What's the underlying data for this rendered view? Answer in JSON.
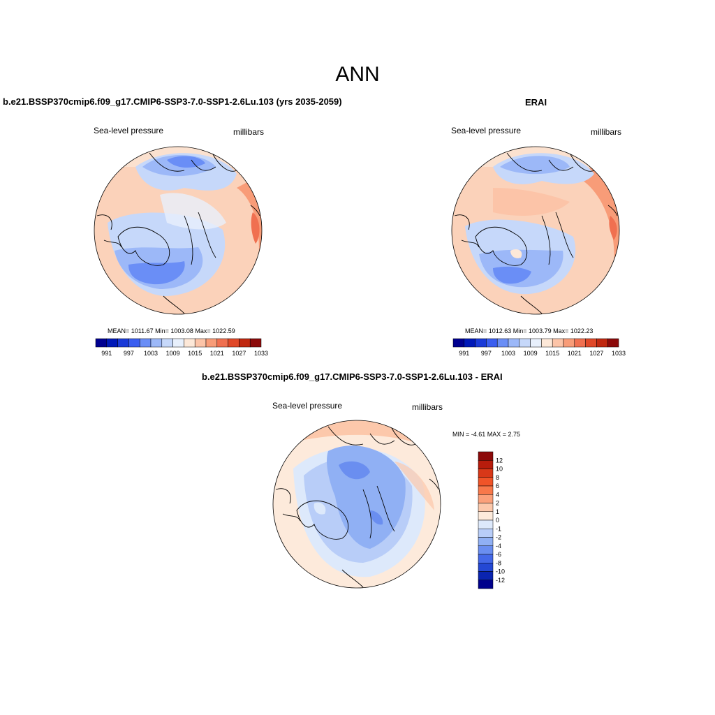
{
  "main_title": "ANN",
  "panels": [
    {
      "title": "b.e21.BSSP370cmip6.f09_g17.CMIP6-SSP3-7.0-SSP1-2.6Lu.103 (yrs 2035-2059)",
      "variable": "Sea-level pressure",
      "units": "millibars",
      "stats": "MEAN= 1011.67  Min= 1003.08  Max= 1022.59"
    },
    {
      "title": "ERAI",
      "variable": "Sea-level pressure",
      "units": "millibars",
      "stats": "MEAN= 1012.63  Min= 1003.79  Max= 1022.23"
    },
    {
      "title": "b.e21.BSSP370cmip6.f09_g17.CMIP6-SSP3-7.0-SSP1-2.6Lu.103 - ERAI",
      "variable": "Sea-level pressure",
      "units": "millibars",
      "stats": "MIN =  -4.61 MAX =   2.75"
    }
  ],
  "colorbar_abs": {
    "colors": [
      "#000090",
      "#0019b8",
      "#1a3ad8",
      "#3a5ef0",
      "#6a8ef6",
      "#9cb8f8",
      "#c6d8fa",
      "#e8f0fc",
      "#fde8d8",
      "#fcc4a8",
      "#f89c78",
      "#f07050",
      "#e04828",
      "#c02810",
      "#8c0a0a"
    ],
    "labels": [
      "991",
      "997",
      "1003",
      "1009",
      "1015",
      "1021",
      "1027",
      "1033"
    ]
  },
  "colorbar_diff": {
    "colors": [
      "#8c0a0a",
      "#b81c0c",
      "#d83818",
      "#f05428",
      "#f8784a",
      "#fba07a",
      "#fcc8ab",
      "#fdeadb",
      "#dde9fb",
      "#b8cdf8",
      "#90b0f4",
      "#6a8ef0",
      "#4468e8",
      "#2448d4",
      "#0a24b0",
      "#00008c"
    ],
    "labels": [
      "12",
      "10",
      "8",
      "6",
      "4",
      "2",
      "1",
      "0",
      "-1",
      "-2",
      "-4",
      "-6",
      "-8",
      "-10",
      "-12"
    ]
  },
  "chart_data": [
    {
      "type": "heatmap",
      "title": "b.e21.BSSP370cmip6.f09_g17.CMIP6-SSP3-7.0-SSP1-2.6Lu.103 (yrs 2035-2059)",
      "field": "Sea-level pressure",
      "units": "millibars",
      "projection": "north polar stereographic",
      "contour_levels": [
        991,
        994,
        997,
        1000,
        1003,
        1006,
        1009,
        1012,
        1015,
        1018,
        1021,
        1024,
        1027,
        1030,
        1033
      ],
      "mean": 1011.67,
      "min": 1003.08,
      "max": 1022.59
    },
    {
      "type": "heatmap",
      "title": "ERAI",
      "field": "Sea-level pressure",
      "units": "millibars",
      "projection": "north polar stereographic",
      "contour_levels": [
        991,
        994,
        997,
        1000,
        1003,
        1006,
        1009,
        1012,
        1015,
        1018,
        1021,
        1024,
        1027,
        1030,
        1033
      ],
      "mean": 1012.63,
      "min": 1003.79,
      "max": 1022.23
    },
    {
      "type": "heatmap",
      "title": "b.e21.BSSP370cmip6.f09_g17.CMIP6-SSP3-7.0-SSP1-2.6Lu.103 - ERAI",
      "field": "Sea-level pressure",
      "units": "millibars",
      "projection": "north polar stereographic",
      "contour_levels": [
        -12,
        -10,
        -8,
        -6,
        -4,
        -2,
        -1,
        0,
        1,
        2,
        4,
        6,
        8,
        10,
        12
      ],
      "min": -4.61,
      "max": 2.75
    }
  ]
}
